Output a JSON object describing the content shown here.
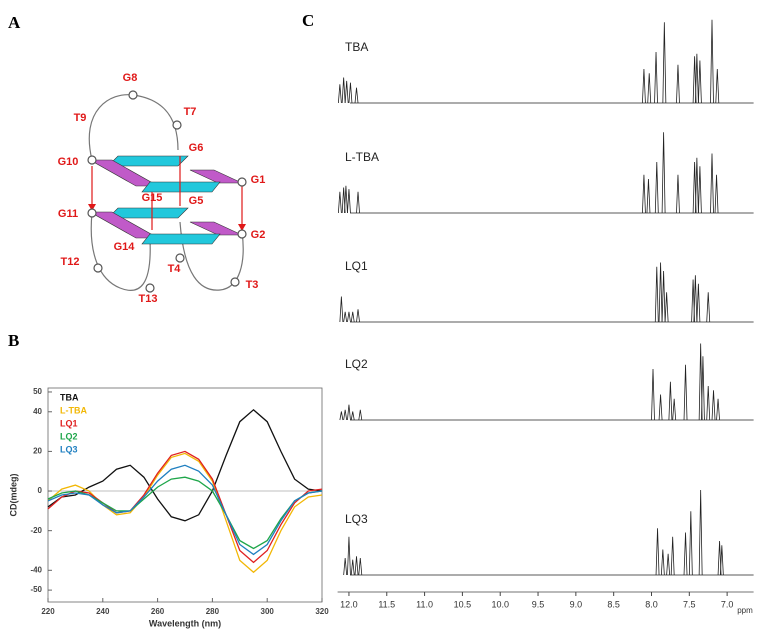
{
  "panels": {
    "a": "A",
    "b": "B",
    "c": "C"
  },
  "diagram": {
    "nodes": [
      "G8",
      "T7",
      "T9",
      "G6",
      "G10",
      "G1",
      "G15",
      "G5",
      "G11",
      "G2",
      "G14",
      "T4",
      "T12",
      "T3",
      "T13"
    ]
  },
  "chart_data": [
    {
      "type": "line",
      "xlabel": "Wavelength (nm)",
      "ylabel": "CD(mdeg)",
      "x": [
        220,
        225,
        230,
        235,
        240,
        245,
        250,
        255,
        260,
        265,
        270,
        275,
        280,
        285,
        290,
        295,
        300,
        305,
        310,
        315,
        320
      ],
      "xlim": [
        220,
        320
      ],
      "xticks": [
        220,
        240,
        260,
        280,
        300,
        320
      ],
      "ylim": [
        -56,
        52
      ],
      "yticks": [
        -50,
        -40,
        -20,
        0,
        20,
        40,
        50
      ],
      "legend": "upper left",
      "series": [
        {
          "name": "TBA",
          "color": "#111111",
          "values": [
            -8,
            -3,
            -2,
            2,
            5,
            11,
            13,
            7,
            -4,
            -13,
            -15,
            -12,
            0,
            18,
            35,
            41,
            35,
            20,
            6,
            1,
            0
          ]
        },
        {
          "name": "L-TBA",
          "color": "#f2b705",
          "values": [
            -5,
            1,
            3,
            0,
            -7,
            -12,
            -11,
            -3,
            8,
            17,
            19,
            15,
            5,
            -15,
            -35,
            -41,
            -35,
            -20,
            -8,
            -3,
            -2
          ]
        },
        {
          "name": "LQ1",
          "color": "#e02020",
          "values": [
            -9,
            -3,
            0,
            -1,
            -6,
            -11,
            -10,
            -2,
            9,
            18,
            20,
            16,
            6,
            -12,
            -30,
            -36,
            -30,
            -17,
            -6,
            0,
            1
          ]
        },
        {
          "name": "LQ2",
          "color": "#1ea64a",
          "values": [
            -4,
            -1,
            0,
            -2,
            -6,
            -10,
            -10,
            -4,
            2,
            6,
            7,
            5,
            0,
            -12,
            -25,
            -29,
            -25,
            -14,
            -5,
            -1,
            0
          ]
        },
        {
          "name": "LQ3",
          "color": "#1f7fc0",
          "values": [
            -5,
            -2,
            -1,
            -2,
            -7,
            -11,
            -10,
            -3,
            5,
            11,
            13,
            10,
            3,
            -12,
            -27,
            -32,
            -27,
            -15,
            -5,
            -1,
            0
          ]
        }
      ]
    },
    {
      "type": "spectrum",
      "xlabel": "ppm",
      "xlim": [
        12.15,
        6.65
      ],
      "xticks": [
        {
          "value": 12,
          "label": "12.0"
        },
        11.5,
        {
          "value": 11,
          "label": "11.0"
        },
        10.5,
        {
          "value": 10,
          "label": "10.0"
        },
        9.5,
        {
          "value": 9,
          "label": "9.0"
        },
        8.5,
        {
          "value": 8,
          "label": "8.0"
        },
        7.5,
        {
          "value": 7,
          "label": "7.0"
        }
      ],
      "series": [
        {
          "name": "TBA",
          "color": "#222222",
          "x": [
            12.12,
            12.07,
            12.03,
            11.98,
            11.9,
            8.1,
            8.03,
            7.94,
            7.83,
            7.65,
            7.43,
            7.4,
            7.36,
            7.2,
            7.13
          ],
          "values": [
            22,
            30,
            26,
            24,
            18,
            40,
            35,
            60,
            95,
            45,
            55,
            58,
            50,
            98,
            40
          ]
        },
        {
          "name": "L-TBA",
          "color": "#222222",
          "x": [
            12.12,
            12.07,
            12.04,
            12.0,
            11.88,
            8.1,
            8.04,
            7.93,
            7.84,
            7.65,
            7.43,
            7.4,
            7.36,
            7.2,
            7.14
          ],
          "values": [
            25,
            30,
            32,
            28,
            25,
            45,
            40,
            60,
            95,
            45,
            60,
            65,
            55,
            70,
            45
          ]
        },
        {
          "name": "LQ1",
          "color": "#222222",
          "x": [
            12.1,
            12.05,
            12.0,
            11.95,
            11.88,
            7.93,
            7.88,
            7.84,
            7.8,
            7.45,
            7.42,
            7.38,
            7.25
          ],
          "values": [
            30,
            12,
            12,
            12,
            15,
            65,
            70,
            60,
            35,
            50,
            55,
            45,
            35
          ]
        },
        {
          "name": "LQ2",
          "color": "#222222",
          "x": [
            12.1,
            12.05,
            12.0,
            11.95,
            11.85,
            7.98,
            7.88,
            7.75,
            7.7,
            7.55,
            7.35,
            7.32,
            7.25,
            7.18,
            7.12
          ],
          "values": [
            10,
            12,
            18,
            10,
            12,
            60,
            30,
            45,
            25,
            65,
            90,
            75,
            40,
            35,
            25
          ]
        },
        {
          "name": "LQ3",
          "color": "#222222",
          "x": [
            12.05,
            12.0,
            11.95,
            11.9,
            11.85,
            7.92,
            7.85,
            7.78,
            7.72,
            7.55,
            7.48,
            7.35,
            7.1,
            7.07
          ],
          "values": [
            20,
            45,
            18,
            22,
            20,
            55,
            30,
            25,
            45,
            50,
            75,
            100,
            40,
            35
          ]
        }
      ]
    }
  ]
}
